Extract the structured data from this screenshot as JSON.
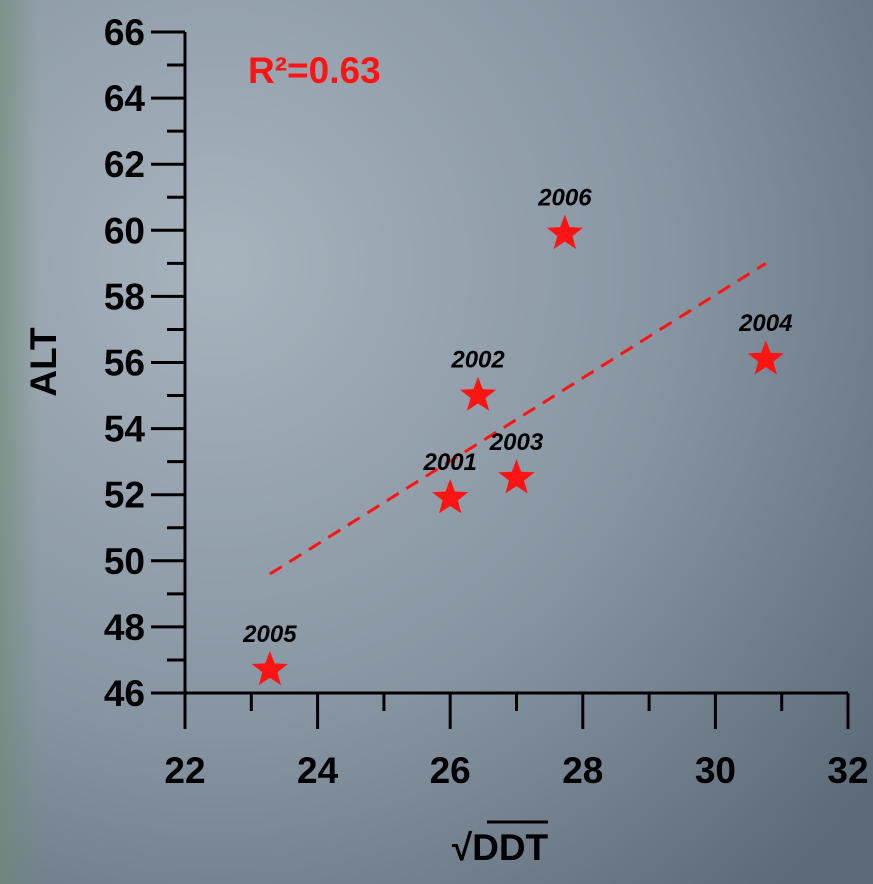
{
  "chart_data": {
    "type": "scatter",
    "x_label": "√DDT",
    "y_label": "ALT",
    "annotation": "R²=0.63",
    "x": [
      26.0,
      26.42,
      27.0,
      30.76,
      23.28,
      27.73
    ],
    "y": [
      51.9,
      55.0,
      52.5,
      56.1,
      46.7,
      59.9
    ],
    "point_labels": [
      "2001",
      "2002",
      "2003",
      "2004",
      "2005",
      "2006"
    ],
    "color": "#ff1414",
    "trendline": {
      "x": [
        23.28,
        30.76
      ],
      "y": [
        49.6,
        59.0
      ]
    },
    "xlim": [
      22,
      32
    ],
    "ylim": [
      46,
      66
    ],
    "xticks": [
      22,
      24,
      26,
      28,
      30,
      32
    ],
    "yticks": [
      46,
      48,
      50,
      52,
      54,
      56,
      58,
      60,
      62,
      64,
      66
    ],
    "xminorticks": [
      23,
      25,
      27,
      29,
      31
    ],
    "yminorticks": [
      47,
      49,
      51,
      53,
      55,
      57,
      59,
      61,
      63,
      65
    ]
  }
}
